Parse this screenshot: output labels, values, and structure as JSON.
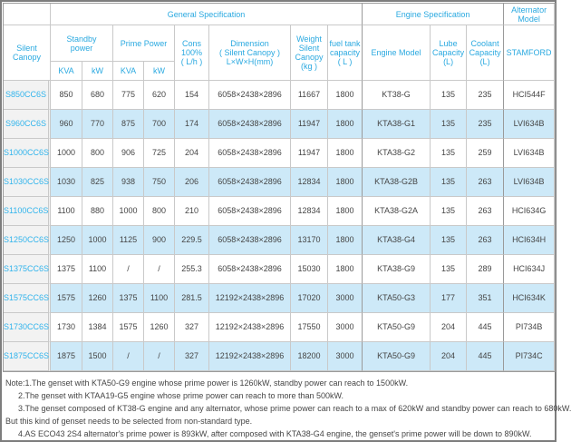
{
  "colors": {
    "accent": "#2aa9e0",
    "link": "#31b4ec",
    "text": "#454545",
    "row_alt_bg": "#cde9f8",
    "first_col_bg": "#f2f2f2",
    "border": "#c9c9c9",
    "border_dark": "#9a9a9a"
  },
  "table": {
    "sections": {
      "general": "General Specification",
      "engine": "Engine Specification",
      "alternator": "Alternator Model"
    },
    "headers": {
      "silent_canopy": "Silent Canopy",
      "standby_power": "Standby\npower",
      "prime_power": "Prime Power",
      "kva": "KVA",
      "kw": "kW",
      "cons": "Cons\n100%\n( L/h )",
      "dimension": "Dimension\n( Silent Canopy )\nL×W×H(mm)",
      "weight": "Weight\nSilent\nCanopy\n(kg )",
      "fuel_tank": "fuel tank\ncapacity\n( L )",
      "engine_model": "Engine Model",
      "lube_capacity": "Lube\nCapacity\n(L)",
      "coolant_capacity": "Coolant\nCapacity\n(L)",
      "stamford": "STAMFORD"
    },
    "column_keys": [
      "model",
      "standby-kva",
      "standby-kw",
      "prime-kva",
      "prime-kw",
      "cons-100",
      "dimension",
      "weight",
      "fuel-tank-capacity",
      "engine-model",
      "lube-capacity",
      "coolant-capacity",
      "alternator-stamford"
    ],
    "rows": [
      [
        "S850CC6S",
        "850",
        "680",
        "775",
        "620",
        "154",
        "6058×2438×2896",
        "11667",
        "1800",
        "KT38-G",
        "135",
        "235",
        "HCI544F"
      ],
      [
        "S960CC6S",
        "960",
        "770",
        "875",
        "700",
        "174",
        "6058×2438×2896",
        "11947",
        "1800",
        "KTA38-G1",
        "135",
        "235",
        "LVI634B"
      ],
      [
        "S1000CC6S",
        "1000",
        "800",
        "906",
        "725",
        "204",
        "6058×2438×2896",
        "11947",
        "1800",
        "KTA38-G2",
        "135",
        "259",
        "LVI634B"
      ],
      [
        "S1030CC6S",
        "1030",
        "825",
        "938",
        "750",
        "206",
        "6058×2438×2896",
        "12834",
        "1800",
        "KTA38-G2B",
        "135",
        "263",
        "LVI634B"
      ],
      [
        "S1100CC6S",
        "1100",
        "880",
        "1000",
        "800",
        "210",
        "6058×2438×2896",
        "12834",
        "1800",
        "KTA38-G2A",
        "135",
        "263",
        "HCI634G"
      ],
      [
        "S1250CC6S",
        "1250",
        "1000",
        "1125",
        "900",
        "229.5",
        "6058×2438×2896",
        "13170",
        "1800",
        "KTA38-G4",
        "135",
        "263",
        "HCI634H"
      ],
      [
        "S1375CC6S",
        "1375",
        "1100",
        "/",
        "/",
        "255.3",
        "6058×2438×2896",
        "15030",
        "1800",
        "KTA38-G9",
        "135",
        "289",
        "HCI634J"
      ],
      [
        "S1575CC6S",
        "1575",
        "1260",
        "1375",
        "1100",
        "281.5",
        "12192×2438×2896",
        "17020",
        "3000",
        "KTA50-G3",
        "177",
        "351",
        "HCI634K"
      ],
      [
        "S1730CC6S",
        "1730",
        "1384",
        "1575",
        "1260",
        "327",
        "12192×2438×2896",
        "17550",
        "3000",
        "KTA50-G9",
        "204",
        "445",
        "PI734B"
      ],
      [
        "S1875CC6S",
        "1875",
        "1500",
        "/",
        "/",
        "327",
        "12192×2438×2896",
        "18200",
        "3000",
        "KTA50-G9",
        "204",
        "445",
        "PI734C"
      ]
    ]
  },
  "notes": {
    "lines": [
      {
        "text": "Note:1.The genset with KTA50-G9 engine whose prime power is 1260kW, standby power can reach to 1500kW."
      },
      {
        "text": "2.The genset with KTAA19-G5 engine whose prime power can reach to more than 500kW."
      },
      {
        "text": "3.The genset composed of KT38-G engine and any alternator, whose prime power can reach to a max of 620kW and standby power can reach to 680kW."
      },
      {
        "text": "But this kind of genset needs to be selected from non-standard type."
      },
      {
        "text": "4.AS ECO43 2S4 alternator's prime power is 893kW, after composed with KTA38-G4 engine, the genset's prime power will be down to 890kW."
      }
    ]
  }
}
